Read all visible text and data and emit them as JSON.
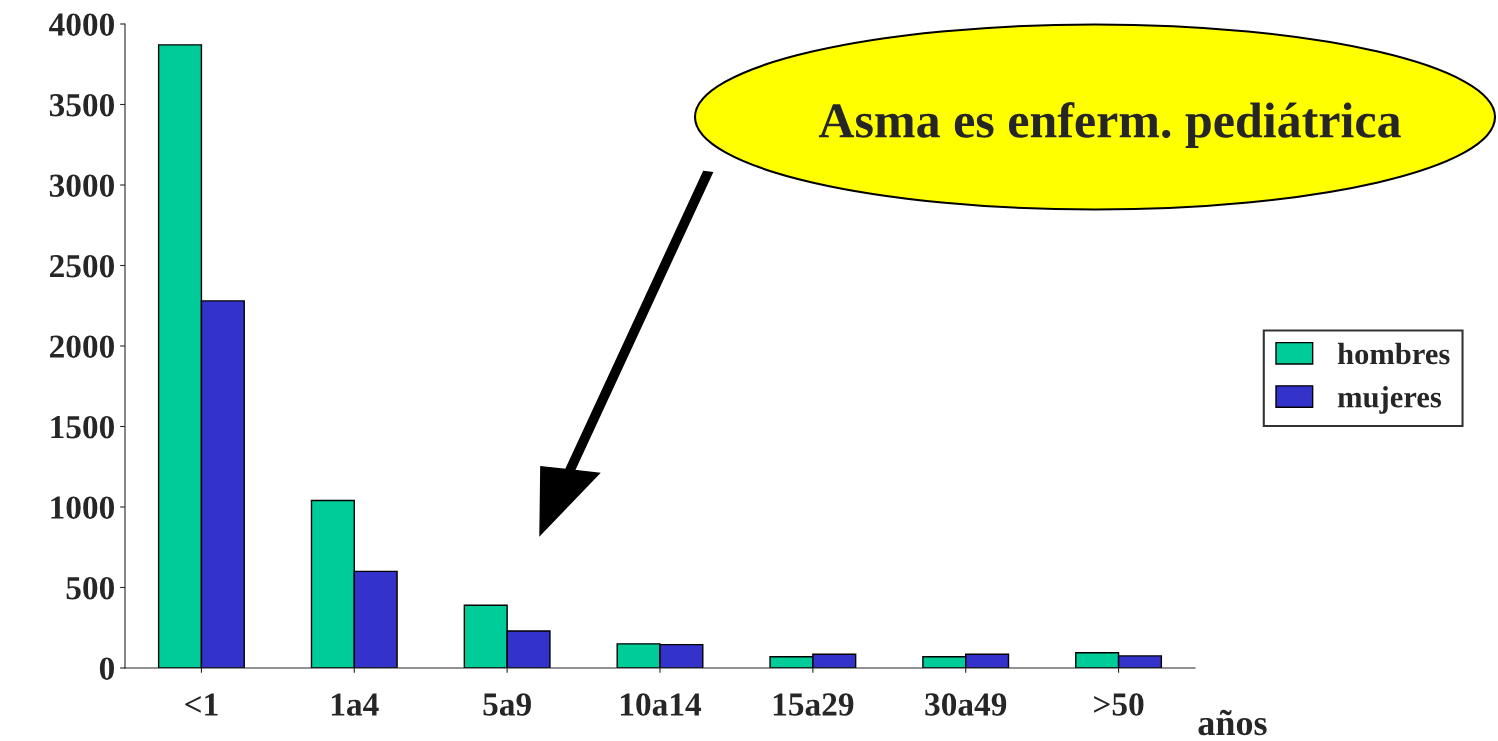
{
  "chart_data": {
    "type": "bar",
    "categories": [
      "<1",
      "1a4",
      "5a9",
      "10a14",
      "15a29",
      "30a49",
      ">50"
    ],
    "series": [
      {
        "name": "hombres",
        "color": "#00cc99",
        "values": [
          3870,
          1040,
          390,
          150,
          70,
          70,
          95
        ]
      },
      {
        "name": "mujeres",
        "color": "#3333cc",
        "values": [
          2280,
          600,
          230,
          145,
          85,
          85,
          75
        ]
      }
    ],
    "xlabel": "años",
    "ylim": [
      0,
      4000
    ],
    "yticks": [
      0,
      500,
      1000,
      1500,
      2000,
      2500,
      3000,
      3500,
      4000
    ],
    "annotations": [
      "Asma es enferm. pediátrica"
    ],
    "legend": "right",
    "grid": false
  }
}
